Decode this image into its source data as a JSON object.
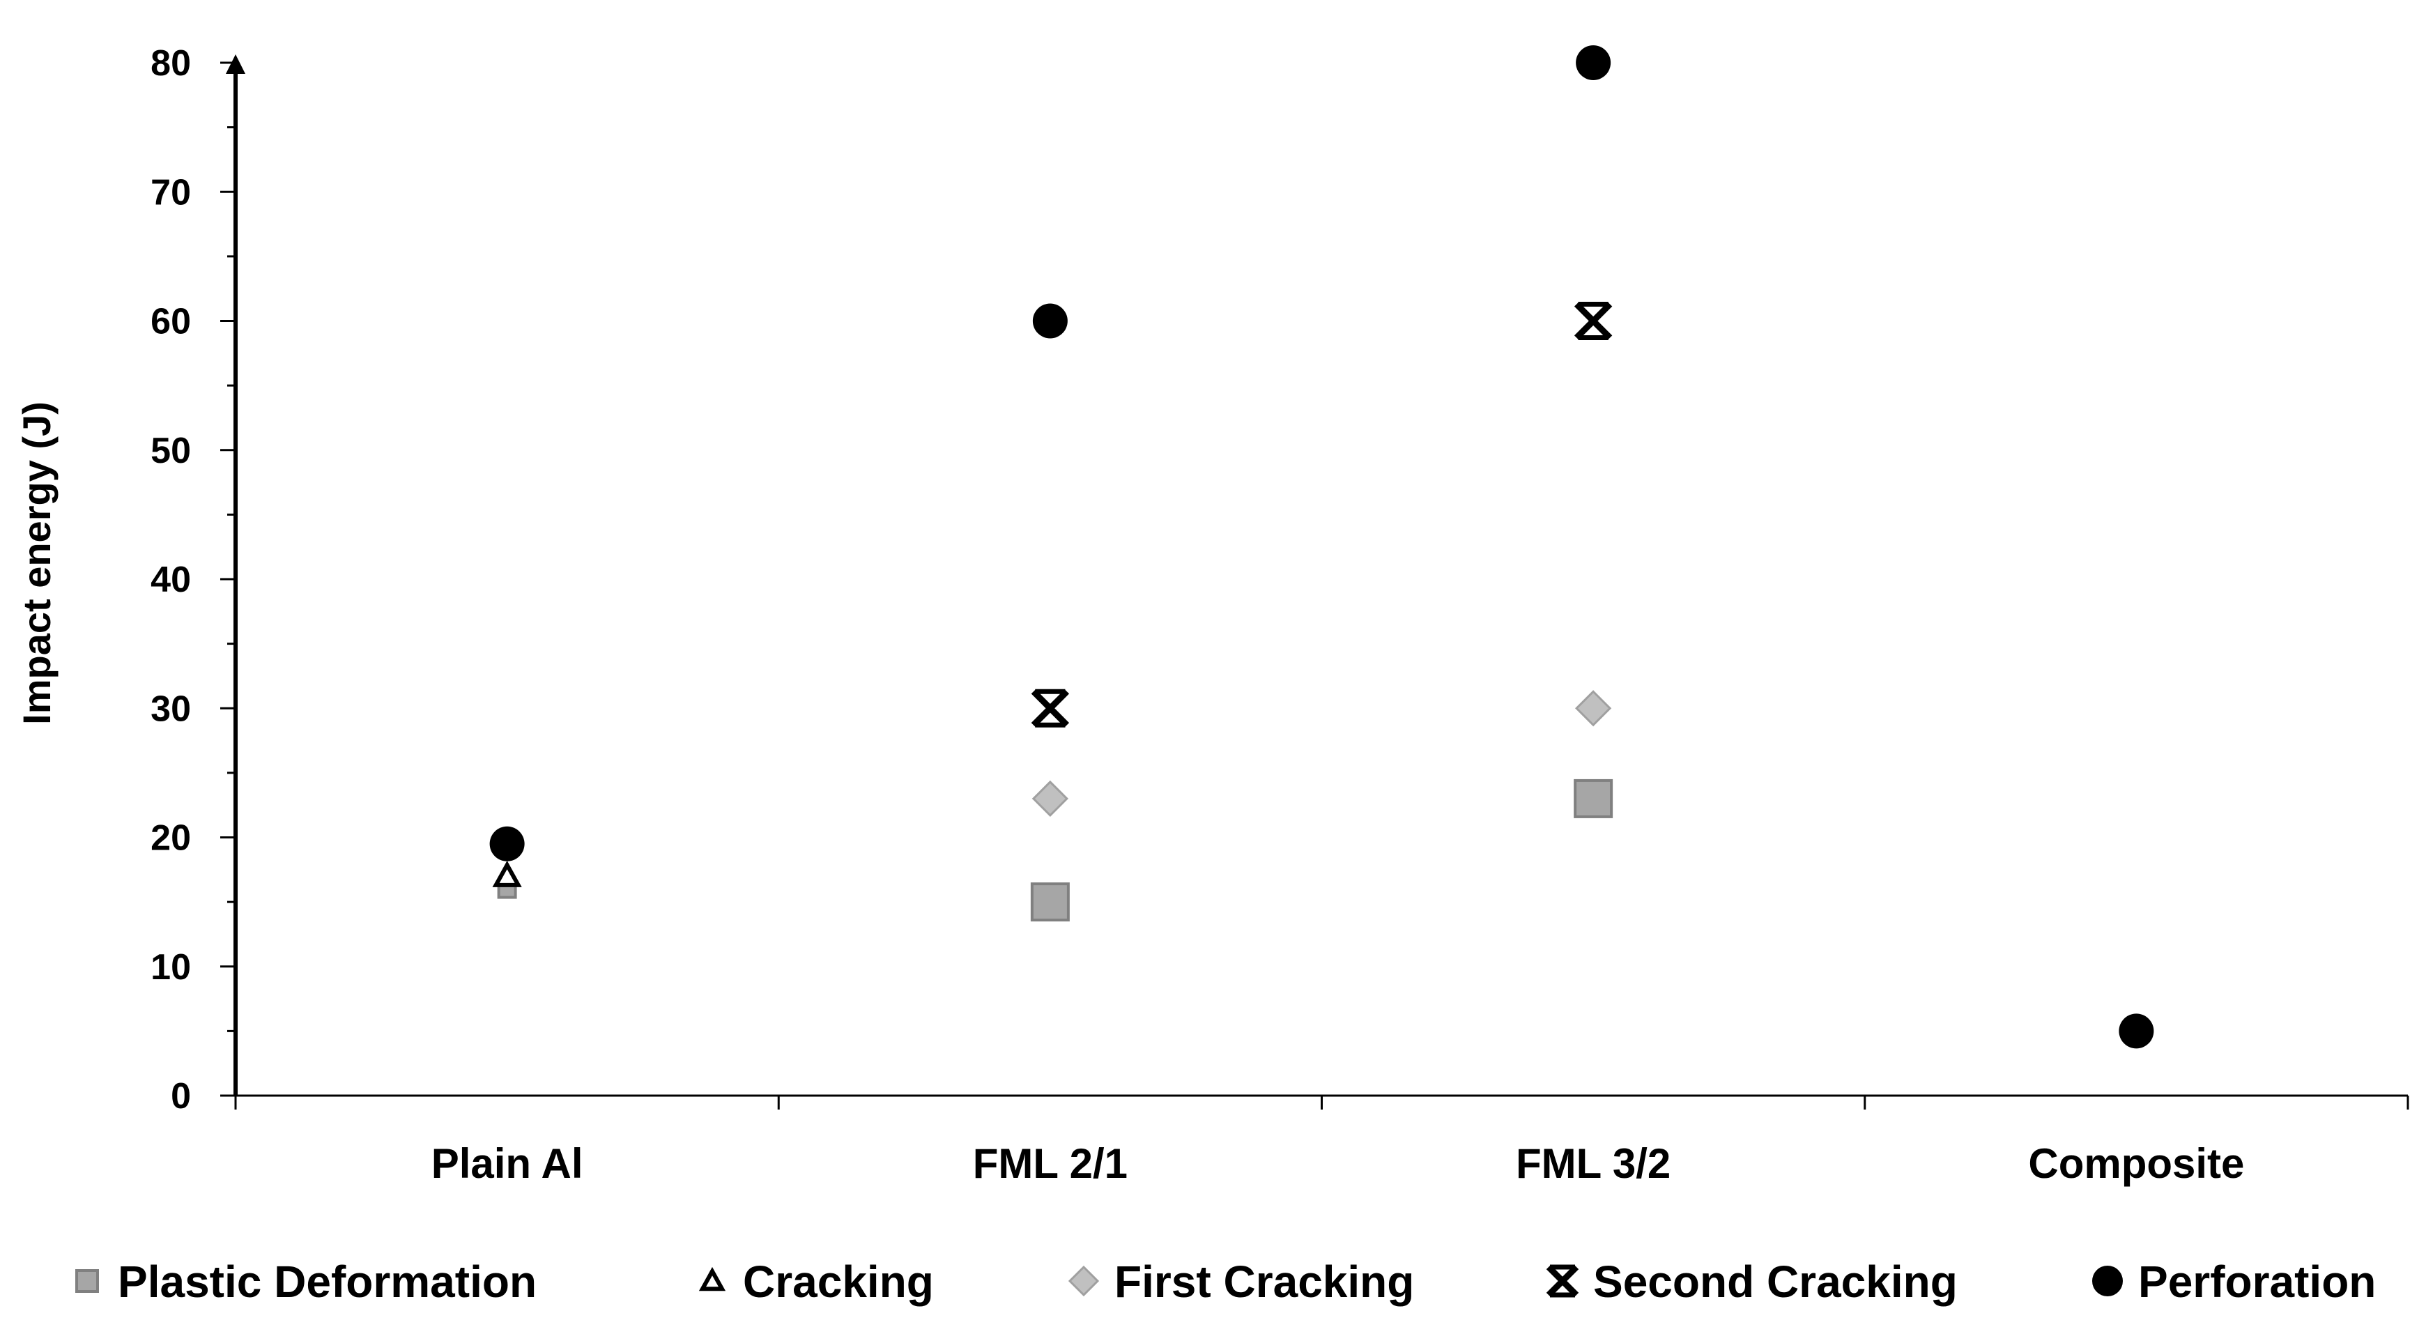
{
  "chart_data": {
    "type": "scatter",
    "title": "",
    "xlabel": "",
    "ylabel": "Impact energy (J)",
    "ylim": [
      0,
      80
    ],
    "yticks": [
      0,
      10,
      20,
      30,
      40,
      50,
      60,
      70,
      80
    ],
    "categories": [
      "Plain Al",
      "FML 2/1",
      "FML 3/2",
      "Composite"
    ],
    "grid": false,
    "legend_position": "bottom",
    "series": [
      {
        "name": "Plastic Deformation",
        "marker": "square",
        "color": "#a6a6a6",
        "values": [
          16,
          15,
          23,
          null
        ]
      },
      {
        "name": "Cracking",
        "marker": "triangle-open",
        "color": "#000000",
        "values": [
          17,
          null,
          null,
          null
        ]
      },
      {
        "name": "First Cracking",
        "marker": "diamond",
        "color": "#c0c0c0",
        "values": [
          null,
          23,
          30,
          null
        ]
      },
      {
        "name": "Second Cracking",
        "marker": "asterisk",
        "color": "#000000",
        "values": [
          null,
          30,
          60,
          null
        ]
      },
      {
        "name": "Perforation",
        "marker": "circle",
        "color": "#000000",
        "values": [
          19.5,
          60,
          80,
          5
        ]
      }
    ]
  }
}
